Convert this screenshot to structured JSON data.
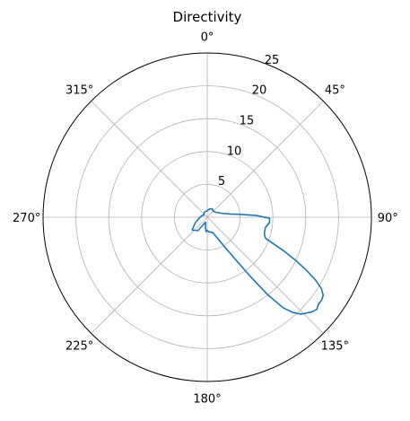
{
  "chart_data": {
    "type": "polar-line",
    "title": "Directivity",
    "theta_direction": "clockwise",
    "theta_zero": "top",
    "theta_ticks": [
      0,
      45,
      90,
      135,
      180,
      225,
      270,
      315
    ],
    "theta_tick_labels": [
      "0°",
      "45°",
      "90°",
      "135°",
      "180°",
      "225°",
      "270°",
      "315°"
    ],
    "r_ticks": [
      5,
      10,
      15,
      20,
      25
    ],
    "r_tick_labels": [
      "5",
      "10",
      "15",
      "20",
      "25"
    ],
    "rlim": [
      0,
      25
    ],
    "grid": true,
    "line_color": "#1f77b4",
    "series": [
      {
        "theta": [
          0,
          15,
          30,
          45,
          60,
          75,
          82,
          85,
          88,
          91,
          95,
          100,
          105,
          108,
          110,
          112,
          114,
          116,
          118,
          120,
          122,
          124,
          126,
          128,
          130,
          132,
          134,
          136,
          138,
          140,
          142,
          144,
          146,
          150,
          160,
          175,
          180,
          185,
          190,
          200,
          215,
          230,
          245,
          255,
          265,
          275,
          290,
          305,
          320,
          340,
          360
        ],
        "r": [
          1.0,
          1.3,
          1.5,
          1.3,
          1.5,
          2.3,
          3.5,
          5.0,
          7.5,
          9.5,
          9.5,
          9.0,
          9.0,
          9.2,
          9.5,
          11.0,
          13.0,
          15.0,
          17.0,
          19.0,
          20.5,
          21.3,
          21.5,
          21.5,
          21.8,
          21.5,
          21.0,
          20.5,
          19.5,
          18.0,
          15.0,
          11.0,
          8.0,
          5.0,
          2.5,
          2.2,
          2.0,
          2.2,
          1.5,
          0.8,
          2.5,
          3.0,
          2.0,
          1.5,
          1.2,
          1.0,
          0.8,
          0.6,
          0.8,
          0.9,
          1.0
        ]
      }
    ]
  }
}
